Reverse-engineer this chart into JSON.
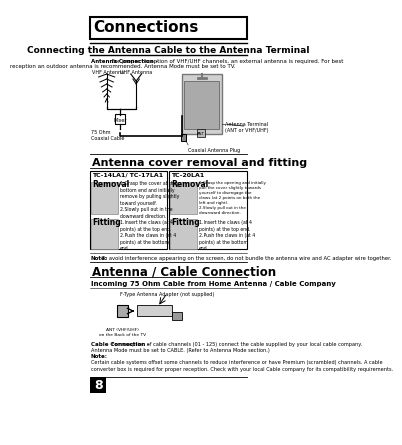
{
  "page_number": "8",
  "bg_color": "#ffffff",
  "title_box_text": "Connections",
  "section1_title": "Connecting the Antenna Cable to the Antenna Terminal",
  "antenna_connection_bold": "Antenna Connection -",
  "antenna_connection_text1": " For proper reception of VHF/UHF channels, an external antenna is required. For best",
  "antenna_connection_text2": "reception an outdoor antenna is recommended. Antenna Mode must be set to TV.",
  "label_vhf": "VHF Antenna",
  "label_uhf": "UHF Antenna",
  "label_mixer": "Mixer",
  "label_coaxial": "75 Ohm\nCoaxial Cable",
  "label_ant_terminal": "Antenna Terminal\n(ANT or VHF/UHF)",
  "label_coaxial_plug": "Coaxial Antenna Plug",
  "section2_title": "Antenna cover removal and fitting",
  "tc1_label": "TC-14LA1/ TC-17LA1",
  "tc2_label": "TC-20LA1",
  "tc1_removal_text": "1.Grasp the cover at the\nbottom end and initially\nremove by pulling slightly\ntoward yourself.\n2.Slowly pull out in the\ndownward direction.",
  "tc2_removal_text": "1.Grasp the opening and initially\npull the cover slightly towards\nyourself to disengage the\nclaws (at 2 points on both the\nleft and right).\n2.Slowly pull out in the\ndownward direction.",
  "tc1_fitting_text": "1.Insert the claws (at 4\npoints) at the top end.\n2.Push the claws in (at 4\npoints) at the bottom\nend.",
  "tc2_fitting_text": "1.Insert the claws (at 4\npoints) at the top end.\n2.Push the claws in (at 4\npoints) at the bottom\nend.",
  "note1_bold": "Note:",
  "note1_text": " To avoid interference appearing on the screen, do not bundle the antenna wire and AC adapter wire together.",
  "section3_title": "Antenna / Cable Connection",
  "section3_sub": "Incoming 75 Ohm Cable from Home Antenna / Cable Company",
  "f_type_label": "F-Type Antenna Adapter (not supplied)",
  "ant_label": "ANT (VHF/UHF)\non the Back of the TV",
  "cable_bold": "Cable Connection -",
  "cable_text": " For reception of cable channels (01 - 125) connect the cable supplied by your local cable company.\nAntenna Mode must be set to CABLE. (Refer to Antenna Mode section.)",
  "note2_bold": "Note:",
  "note2_text": "Certain cable systems offset some channels to reduce interference or have Premium (scrambled) channels. A cable\nconverter box is required for proper reception. Check with your local Cable company for its compatibility requirements."
}
